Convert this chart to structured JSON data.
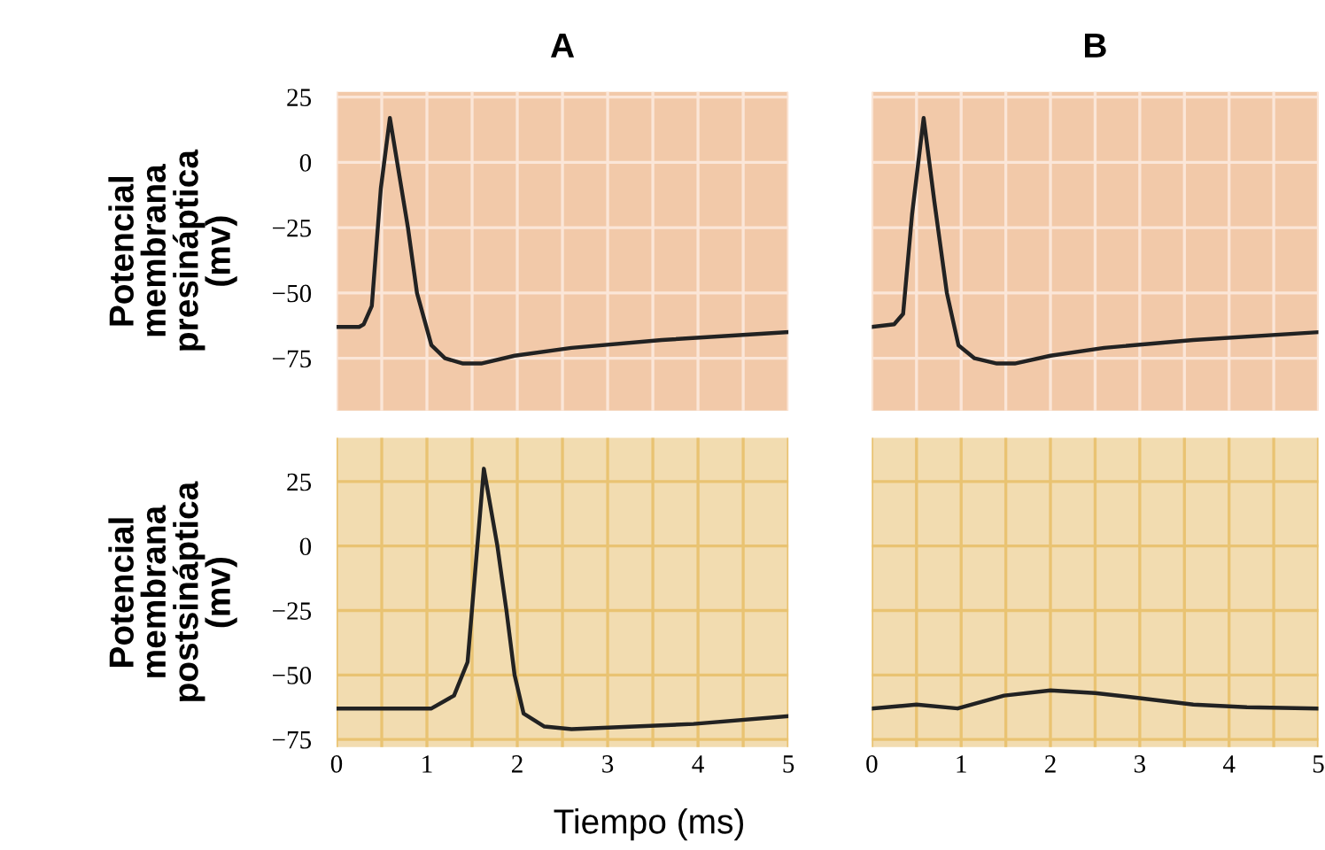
{
  "chart_data": [
    {
      "type": "line",
      "title": "A",
      "ylabel": "Potencial\nmembrana\npresináptica\n(mv)",
      "xlim": [
        0,
        5
      ],
      "ylim": [
        -95,
        27
      ],
      "xticks": [
        0,
        1,
        2,
        3,
        4,
        5
      ],
      "yticks": [
        25,
        0,
        -25,
        -50,
        -75
      ],
      "grid": true,
      "tick_labels": "y",
      "series": [
        {
          "color": "#222222",
          "x": [
            0,
            0.25,
            0.3,
            0.39,
            0.49,
            0.59,
            0.79,
            0.89,
            1.05,
            1.2,
            1.4,
            1.6,
            1.97,
            2.6,
            3.6,
            5
          ],
          "values": [
            -63,
            -63,
            -62,
            -55,
            -10,
            17,
            -25,
            -50,
            -70,
            -75,
            -77,
            -77,
            -74,
            -71,
            -68,
            -65
          ]
        }
      ]
    },
    {
      "type": "line",
      "title": "B",
      "xlim": [
        0,
        5
      ],
      "ylim": [
        -95,
        27
      ],
      "xticks": [
        0,
        1,
        2,
        3,
        4,
        5
      ],
      "yticks": [
        25,
        0,
        -25,
        -50,
        -75
      ],
      "grid": true,
      "tick_labels": false,
      "series": [
        {
          "color": "#222222",
          "x": [
            0,
            0.25,
            0.35,
            0.45,
            0.58,
            0.7,
            0.84,
            0.97,
            1.15,
            1.4,
            1.6,
            2.0,
            2.6,
            3.6,
            5
          ],
          "values": [
            -63,
            -62,
            -58,
            -20,
            17,
            -15,
            -50,
            -70,
            -75,
            -77,
            -77,
            -74,
            -71,
            -68,
            -65
          ]
        }
      ]
    },
    {
      "type": "line",
      "ylabel": "Potencial\nmembrana\npostsináptica\n(mv)",
      "xlabel": "Tiempo (ms)",
      "xlim": [
        0,
        5
      ],
      "ylim": [
        -78,
        42
      ],
      "xticks": [
        0,
        1,
        2,
        3,
        4,
        5
      ],
      "yticks": [
        25,
        0,
        -25,
        -50,
        -75
      ],
      "grid": true,
      "series": [
        {
          "color": "#222222",
          "x": [
            0,
            1.05,
            1.3,
            1.45,
            1.63,
            1.78,
            1.88,
            1.97,
            2.07,
            2.3,
            2.6,
            3.3,
            3.95,
            5
          ],
          "values": [
            -63,
            -63,
            -58,
            -45,
            30,
            0,
            -25,
            -50,
            -65,
            -70,
            -71,
            -70,
            -69,
            -66
          ]
        }
      ]
    },
    {
      "type": "line",
      "xlim": [
        0,
        5
      ],
      "ylim": [
        -78,
        42
      ],
      "xticks": [
        0,
        1,
        2,
        3,
        4,
        5
      ],
      "yticks": [
        25,
        0,
        -25,
        -50,
        -75
      ],
      "grid": true,
      "tick_labels": "x",
      "series": [
        {
          "color": "#222222",
          "x": [
            0,
            0.5,
            0.96,
            1.48,
            2.0,
            2.5,
            3.0,
            3.6,
            4.2,
            5
          ],
          "values": [
            -63,
            -61.5,
            -63,
            -58,
            -56,
            -57,
            -59,
            -61.5,
            -62.5,
            -63
          ]
        }
      ]
    }
  ]
}
